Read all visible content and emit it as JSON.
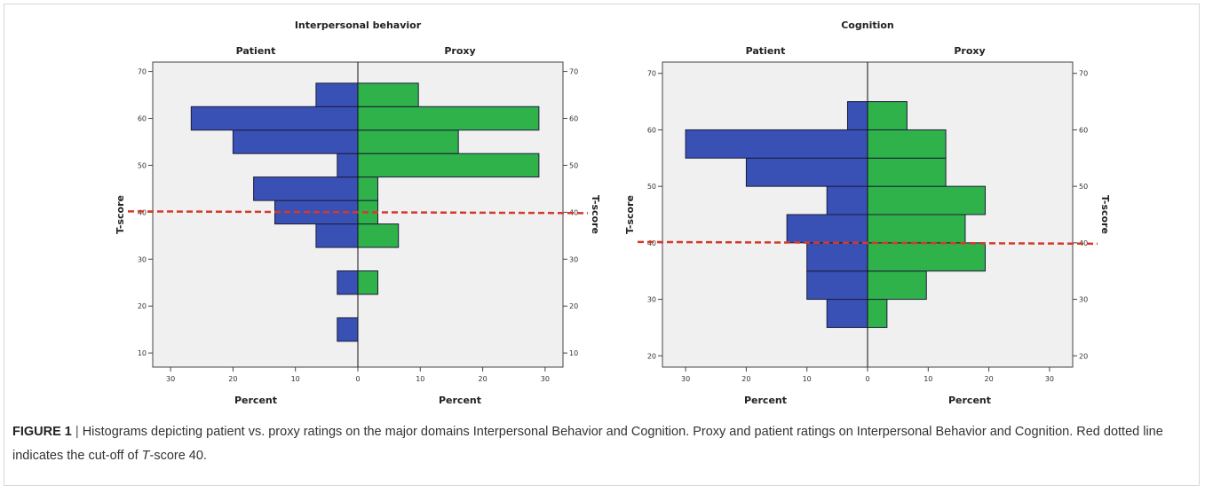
{
  "colors": {
    "patient": "#3950b4",
    "proxy": "#2fb24a",
    "cutoff": "#d23a2c",
    "plot_bg": "#f0f0f0",
    "bar_edge": "#1c1c3c"
  },
  "chart_data": [
    {
      "type": "bar",
      "orientation": "horizontal-population-pyramid",
      "title": "Interpersonal behavior",
      "left_label": "Patient",
      "right_label": "Proxy",
      "xlabel_left": "Percent",
      "xlabel_right": "Percent",
      "ylabel_left": "T-score",
      "ylabel_right": "T-score",
      "ylim": [
        7,
        72
      ],
      "xlim": [
        0,
        33
      ],
      "yticks": [
        10,
        20,
        30,
        40,
        50,
        60,
        70
      ],
      "xticks": [
        0,
        10,
        20,
        30
      ],
      "cutoff": 40,
      "bins": [
        {
          "from": 12.5,
          "to": 17.5,
          "patient": 3.3,
          "proxy": 0
        },
        {
          "from": 17.5,
          "to": 22.5,
          "patient": 0,
          "proxy": 0
        },
        {
          "from": 22.5,
          "to": 27.5,
          "patient": 3.3,
          "proxy": 3.2
        },
        {
          "from": 27.5,
          "to": 32.5,
          "patient": 0,
          "proxy": 0
        },
        {
          "from": 32.5,
          "to": 37.5,
          "patient": 6.7,
          "proxy": 6.5
        },
        {
          "from": 37.5,
          "to": 42.5,
          "patient": 13.3,
          "proxy": 3.2
        },
        {
          "from": 42.5,
          "to": 47.5,
          "patient": 16.7,
          "proxy": 3.2
        },
        {
          "from": 47.5,
          "to": 52.5,
          "patient": 3.3,
          "proxy": 29.0
        },
        {
          "from": 52.5,
          "to": 57.5,
          "patient": 20.0,
          "proxy": 16.1
        },
        {
          "from": 57.5,
          "to": 62.5,
          "patient": 26.7,
          "proxy": 29.0
        },
        {
          "from": 62.5,
          "to": 67.5,
          "patient": 6.7,
          "proxy": 9.7
        }
      ]
    },
    {
      "type": "bar",
      "orientation": "horizontal-population-pyramid",
      "title": "Cognition",
      "left_label": "Patient",
      "right_label": "Proxy",
      "xlabel_left": "Percent",
      "xlabel_right": "Percent",
      "ylabel_left": "T-score",
      "ylabel_right": "T-score",
      "ylim": [
        18,
        72
      ],
      "xlim": [
        0,
        33
      ],
      "yticks": [
        20,
        30,
        40,
        50,
        60,
        70
      ],
      "xticks": [
        0,
        10,
        20,
        30
      ],
      "cutoff": 40,
      "bins": [
        {
          "from": 25,
          "to": 30,
          "patient": 6.7,
          "proxy": 3.2
        },
        {
          "from": 30,
          "to": 35,
          "patient": 10.0,
          "proxy": 9.7
        },
        {
          "from": 35,
          "to": 40,
          "patient": 10.0,
          "proxy": 19.4
        },
        {
          "from": 40,
          "to": 45,
          "patient": 13.3,
          "proxy": 16.1
        },
        {
          "from": 45,
          "to": 50,
          "patient": 6.7,
          "proxy": 19.4
        },
        {
          "from": 50,
          "to": 55,
          "patient": 20.0,
          "proxy": 12.9
        },
        {
          "from": 55,
          "to": 60,
          "patient": 30.0,
          "proxy": 12.9
        },
        {
          "from": 60,
          "to": 65,
          "patient": 3.3,
          "proxy": 6.5
        }
      ]
    }
  ],
  "caption": {
    "label": "FIGURE 1",
    "separator": " | ",
    "text_1": "Histograms depicting patient vs. proxy ratings on the major domains Interpersonal Behavior and Cognition. Proxy and patient ratings on Interpersonal Behavior and Cognition. Red dotted line indicates the cut-off of ",
    "italic_t": "T",
    "text_2": "-score 40."
  }
}
